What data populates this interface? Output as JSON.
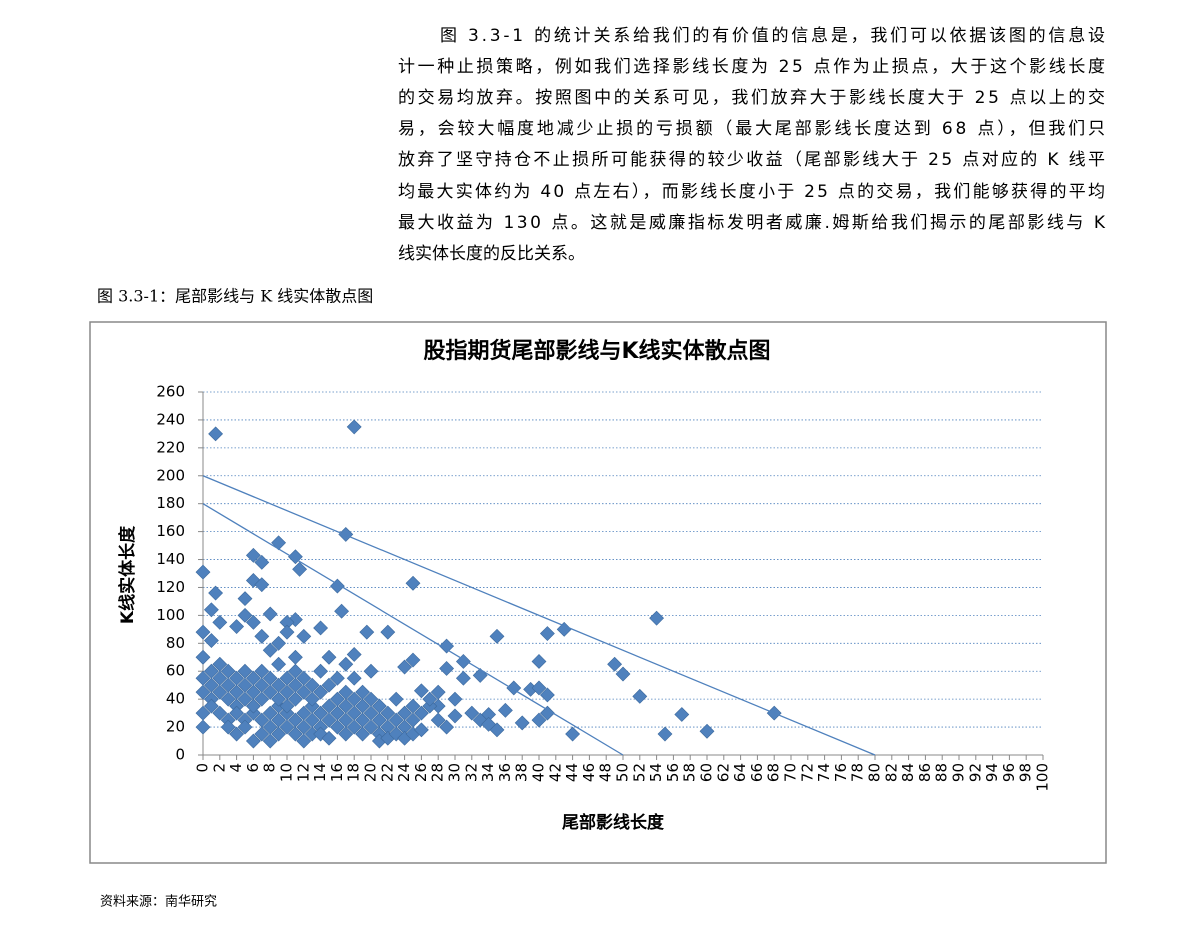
{
  "document": {
    "lines": [
      "图 3.3-1 的统计关系给我们的有价值的信息是，我们可以依据该图的信息设",
      "计一种止损策略，例如我们选择影线长度为 25 点作为止损点，大于这个影线长度",
      "的交易均放弃。按照图中的关系可见，我们放弃大于影线长度大于 25 点以上的交",
      "易，会较大幅度地减少止损的亏损额（最大尾部影线长度达到 68 点），但我们只",
      "放弃了坚守持仓不止损所可能获得的较少收益（尾部影线大于 25 点对应的 K 线平",
      "均最大实体约为 40 点左右），而影线长度小于 25 点的交易，我们能够获得的平均",
      "最大收益为 130 点。这就是威廉指标发明者威廉.姆斯给我们揭示的尾部影线与 K",
      "线实体长度的反比关系。"
    ],
    "caption": "图 3.3-1：尾部影线与 K 线实体散点图",
    "source": "资料来源：南华研究"
  },
  "chart_data": {
    "type": "scatter",
    "title": "股指期货尾部影线与K线实体散点图",
    "x_label": "尾部影线长度",
    "y_label": "K线实体长度",
    "color": "#4f81bd",
    "grid": true,
    "xlim": [
      0,
      100
    ],
    "ylim": [
      0,
      260
    ],
    "xticks": [
      0,
      2,
      4,
      6,
      8,
      10,
      12,
      14,
      16,
      18,
      20,
      22,
      24,
      26,
      28,
      30,
      32,
      34,
      36,
      38,
      40,
      42,
      44,
      46,
      48,
      50,
      52,
      54,
      56,
      58,
      60,
      62,
      64,
      66,
      68,
      70,
      72,
      74,
      76,
      78,
      80,
      82,
      84,
      86,
      88,
      90,
      92,
      94,
      96,
      98,
      100
    ],
    "yticks": [
      0,
      20,
      40,
      60,
      80,
      100,
      120,
      140,
      160,
      180,
      200,
      220,
      240,
      260
    ],
    "x": [
      1.5,
      18,
      17,
      9,
      11,
      6,
      7,
      11.5,
      0,
      25,
      16,
      6,
      7,
      1.5,
      1,
      16.5,
      54,
      11,
      8,
      10,
      14,
      43,
      35,
      41,
      19.5,
      22,
      29,
      31,
      40,
      25,
      24,
      49,
      50,
      52,
      57,
      60,
      68,
      55,
      44,
      37,
      39,
      40,
      41,
      35,
      33,
      34,
      36,
      38,
      40,
      41,
      30,
      28,
      26,
      27,
      29,
      0,
      0,
      0,
      0,
      0,
      0,
      1,
      2,
      1,
      1,
      1,
      1,
      2,
      2,
      2,
      2,
      3,
      3,
      3,
      3,
      3,
      4,
      4,
      4,
      4,
      4,
      4,
      5,
      5,
      5,
      5,
      5,
      5,
      5,
      6,
      6,
      6,
      6,
      6,
      6,
      7,
      7,
      7,
      7,
      7,
      7,
      8,
      8,
      8,
      8,
      8,
      8,
      9,
      9,
      9,
      9,
      9,
      9,
      9,
      10,
      10,
      10,
      10,
      10,
      10,
      11,
      11,
      11,
      11,
      11,
      11,
      12,
      12,
      12,
      12,
      12,
      12,
      13,
      13,
      13,
      13,
      13,
      14,
      14,
      14,
      14,
      14,
      15,
      15,
      15,
      15,
      15,
      16,
      16,
      16,
      16,
      17,
      17,
      17,
      17,
      17,
      18,
      18,
      18,
      18,
      18,
      19,
      19,
      19,
      19,
      20,
      20,
      20,
      20,
      21,
      21,
      21,
      21,
      22,
      22,
      22,
      23,
      23,
      23,
      24,
      24,
      24,
      25,
      25,
      25,
      26,
      26,
      27,
      28,
      28,
      29,
      30,
      31,
      32,
      33,
      34
    ],
    "values": [
      230,
      235,
      158,
      152,
      142,
      143,
      138,
      133,
      131,
      123,
      121,
      125,
      122,
      116,
      104,
      103,
      98,
      97,
      101,
      95,
      91,
      90,
      85,
      87,
      88,
      88,
      78,
      67,
      67,
      68,
      63,
      65,
      58,
      42,
      29,
      17,
      30,
      15,
      15,
      48,
      47,
      48,
      43,
      18,
      57,
      29,
      32,
      23,
      25,
      30,
      40,
      35,
      46,
      35,
      62,
      88,
      70,
      55,
      45,
      30,
      20,
      82,
      95,
      50,
      40,
      60,
      35,
      45,
      55,
      30,
      65,
      50,
      40,
      25,
      60,
      20,
      45,
      35,
      55,
      30,
      15,
      92,
      40,
      50,
      25,
      60,
      20,
      100,
      112,
      30,
      45,
      10,
      55,
      35,
      95,
      40,
      25,
      50,
      15,
      60,
      85,
      30,
      45,
      20,
      55,
      10,
      75,
      35,
      25,
      50,
      15,
      40,
      65,
      80,
      30,
      45,
      20,
      55,
      35,
      88,
      25,
      40,
      60,
      15,
      50,
      70,
      30,
      45,
      20,
      55,
      10,
      85,
      35,
      25,
      50,
      15,
      40,
      30,
      45,
      20,
      60,
      15,
      35,
      25,
      50,
      70,
      12,
      30,
      40,
      20,
      55,
      35,
      25,
      45,
      65,
      15,
      30,
      40,
      20,
      55,
      72,
      25,
      35,
      15,
      45,
      30,
      20,
      40,
      60,
      25,
      15,
      10,
      35,
      20,
      30,
      12,
      25,
      15,
      40,
      20,
      30,
      12,
      35,
      15,
      25,
      30,
      18,
      40,
      25,
      45,
      20,
      28,
      55,
      30,
      25,
      22
    ],
    "trend_lines": [
      {
        "x": [
          0,
          80
        ],
        "y": [
          200,
          0
        ]
      },
      {
        "x": [
          0,
          50
        ],
        "y": [
          180,
          0
        ]
      }
    ]
  }
}
